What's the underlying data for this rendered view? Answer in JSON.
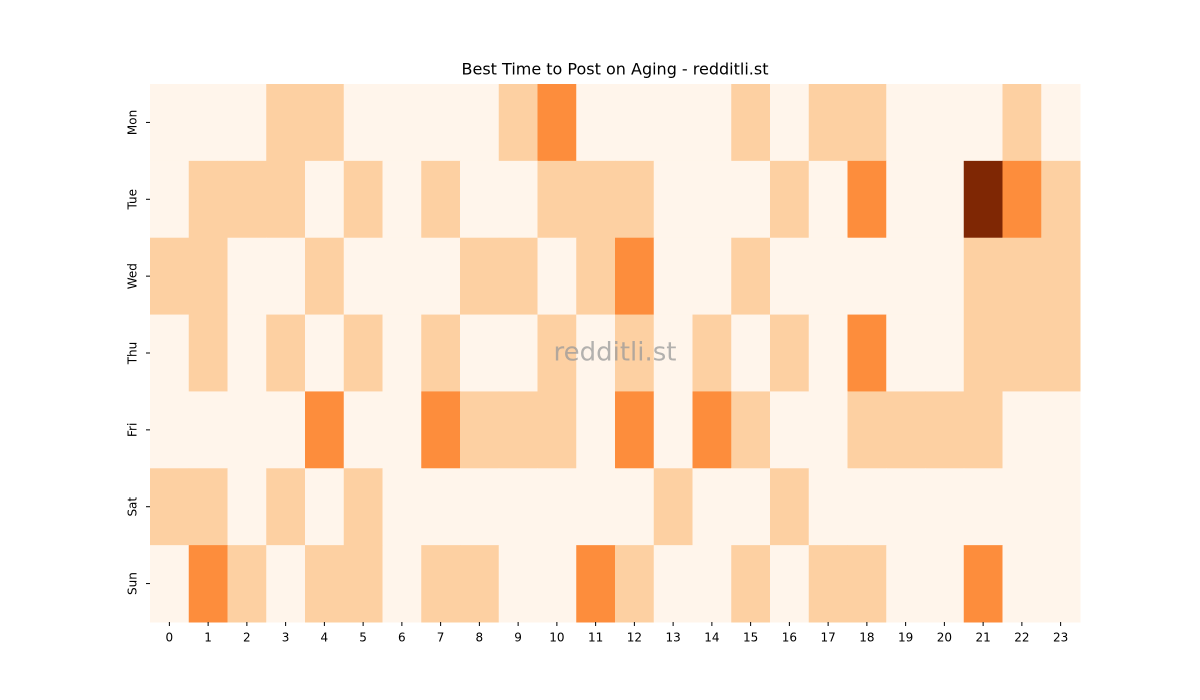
{
  "chart_data": {
    "type": "heatmap",
    "title": "Best Time to Post on Aging - redditli.st",
    "watermark": "redditli.st",
    "x": [
      0,
      1,
      2,
      3,
      4,
      5,
      6,
      7,
      8,
      9,
      10,
      11,
      12,
      13,
      14,
      15,
      16,
      17,
      18,
      19,
      20,
      21,
      22,
      23
    ],
    "y": [
      "Mon",
      "Tue",
      "Wed",
      "Thu",
      "Fri",
      "Sat",
      "Sun"
    ],
    "zlim": [
      0,
      3
    ],
    "colorscale": [
      "#fff5eb",
      "#fdd0a2",
      "#fd8d3c",
      "#7f2704"
    ],
    "values": [
      [
        0,
        0,
        0,
        1,
        1,
        0,
        0,
        0,
        0,
        1,
        2,
        0,
        0,
        0,
        0,
        1,
        0,
        1,
        1,
        0,
        0,
        0,
        1,
        0
      ],
      [
        0,
        1,
        1,
        1,
        0,
        1,
        0,
        1,
        0,
        0,
        1,
        1,
        1,
        0,
        0,
        0,
        1,
        0,
        2,
        0,
        0,
        3,
        2,
        1
      ],
      [
        1,
        1,
        0,
        0,
        1,
        0,
        0,
        0,
        1,
        1,
        0,
        1,
        2,
        0,
        0,
        1,
        0,
        0,
        0,
        0,
        0,
        1,
        1,
        1
      ],
      [
        0,
        1,
        0,
        1,
        0,
        1,
        0,
        1,
        0,
        0,
        1,
        0,
        1,
        0,
        1,
        0,
        1,
        0,
        2,
        0,
        0,
        1,
        1,
        1
      ],
      [
        0,
        0,
        0,
        0,
        2,
        0,
        0,
        2,
        1,
        1,
        1,
        0,
        2,
        0,
        2,
        1,
        0,
        0,
        1,
        1,
        1,
        1,
        0,
        0
      ],
      [
        1,
        1,
        0,
        1,
        0,
        1,
        0,
        0,
        0,
        0,
        0,
        0,
        0,
        1,
        0,
        0,
        1,
        0,
        0,
        0,
        0,
        0,
        0,
        0
      ],
      [
        0,
        2,
        1,
        0,
        1,
        1,
        0,
        1,
        1,
        0,
        0,
        2,
        1,
        0,
        0,
        1,
        0,
        1,
        1,
        0,
        0,
        2,
        0,
        0
      ]
    ]
  }
}
